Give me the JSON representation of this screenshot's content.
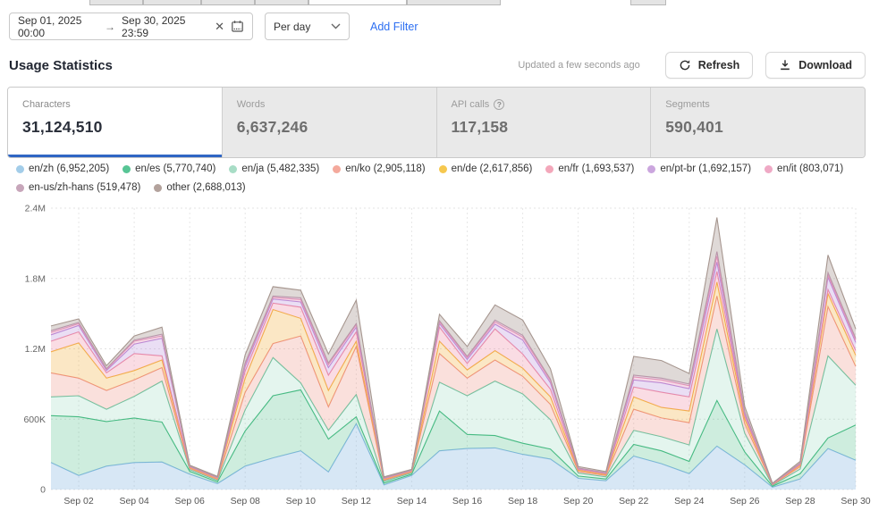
{
  "filters": {
    "date_range": {
      "start": "Sep 01, 2025 00:00",
      "arrow": "→",
      "end": "Sep 30, 2025 23:59"
    },
    "granularity": {
      "value": "Per day"
    },
    "add_filter_label": "Add Filter"
  },
  "header": {
    "title": "Usage Statistics",
    "updated": "Updated a few seconds ago",
    "refresh_label": "Refresh",
    "download_label": "Download"
  },
  "stats": {
    "cards": [
      {
        "label": "Characters",
        "value": "31,124,510",
        "active": true,
        "has_help": false
      },
      {
        "label": "Words",
        "value": "6,637,246",
        "active": false,
        "has_help": false
      },
      {
        "label": "API calls",
        "value": "117,158",
        "active": false,
        "has_help": true
      },
      {
        "label": "Segments",
        "value": "590,401",
        "active": false,
        "has_help": false
      }
    ]
  },
  "chart_data": {
    "type": "area",
    "stacked": true,
    "title": "",
    "xlabel": "",
    "ylabel": "",
    "ylim": [
      0,
      2400000
    ],
    "y_ticks": [
      0,
      600000,
      1200000,
      1800000,
      2400000
    ],
    "y_tick_labels": [
      "0",
      "600K",
      "1.2M",
      "1.8M",
      "2.4M"
    ],
    "x": [
      "Sep 01",
      "Sep 02",
      "Sep 03",
      "Sep 04",
      "Sep 05",
      "Sep 06",
      "Sep 07",
      "Sep 08",
      "Sep 09",
      "Sep 10",
      "Sep 11",
      "Sep 12",
      "Sep 13",
      "Sep 14",
      "Sep 15",
      "Sep 16",
      "Sep 17",
      "Sep 18",
      "Sep 19",
      "Sep 20",
      "Sep 21",
      "Sep 22",
      "Sep 23",
      "Sep 24",
      "Sep 25",
      "Sep 26",
      "Sep 27",
      "Sep 28",
      "Sep 29",
      "Sep 30"
    ],
    "x_tick_labels": [
      "Sep 02",
      "Sep 04",
      "Sep 06",
      "Sep 08",
      "Sep 10",
      "Sep 12",
      "Sep 14",
      "Sep 16",
      "Sep 18",
      "Sep 20",
      "Sep 22",
      "Sep 24",
      "Sep 26",
      "Sep 28",
      "Sep 30"
    ],
    "grid": true,
    "legend_position": "top",
    "series": [
      {
        "name": "en/zh",
        "legend_label": "en/zh (6,952,205)",
        "total": 6952205,
        "dot": "#a3cde9",
        "stroke": "#85b7e2",
        "fill": "rgba(133,183,226,0.33)",
        "values": [
          230000,
          120000,
          200000,
          230000,
          235000,
          130000,
          50000,
          200000,
          270000,
          330000,
          150000,
          560000,
          40000,
          120000,
          330000,
          350000,
          355000,
          300000,
          260000,
          95000,
          75000,
          285000,
          220000,
          135000,
          370000,
          210000,
          20000,
          90000,
          350000,
          250000
        ]
      },
      {
        "name": "en/es",
        "legend_label": "en/es (5,770,740)",
        "total": 5770740,
        "dot": "#57c595",
        "stroke": "#43b97f",
        "fill": "rgba(67,185,127,0.26)",
        "values": [
          400000,
          500000,
          380000,
          380000,
          340000,
          25000,
          15000,
          300000,
          530000,
          520000,
          280000,
          60000,
          15000,
          10000,
          340000,
          120000,
          105000,
          95000,
          85000,
          20000,
          15000,
          100000,
          110000,
          105000,
          390000,
          110000,
          8000,
          45000,
          90000,
          300000
        ]
      },
      {
        "name": "en/ja",
        "legend_label": "en/ja (5,482,335)",
        "total": 5482335,
        "dot": "#a8ddc6",
        "stroke": "#67c6a2",
        "fill": "rgba(103,198,162,0.18)",
        "values": [
          160000,
          180000,
          105000,
          185000,
          350000,
          15000,
          12000,
          180000,
          325000,
          60000,
          75000,
          190000,
          15000,
          12000,
          245000,
          330000,
          465000,
          420000,
          250000,
          25000,
          18000,
          120000,
          120000,
          140000,
          610000,
          160000,
          8000,
          40000,
          700000,
          340000
        ]
      },
      {
        "name": "en/ko",
        "legend_label": "en/ko (2,905,118)",
        "total": 2905118,
        "dot": "#f4a99c",
        "stroke": "#ee9181",
        "fill": "rgba(238,145,129,0.28)",
        "values": [
          205000,
          150000,
          160000,
          140000,
          115000,
          10000,
          10000,
          150000,
          120000,
          400000,
          200000,
          410000,
          10000,
          8000,
          245000,
          150000,
          180000,
          150000,
          130000,
          15000,
          12000,
          180000,
          160000,
          190000,
          280000,
          80000,
          5000,
          20000,
          420000,
          160000
        ]
      },
      {
        "name": "en/de",
        "legend_label": "en/de (2,617,856)",
        "total": 2617856,
        "dot": "#f6c84f",
        "stroke": "#f3b13f",
        "fill": "rgba(243,177,63,0.30)",
        "values": [
          180000,
          300000,
          105000,
          80000,
          65000,
          8000,
          8000,
          120000,
          290000,
          150000,
          140000,
          45000,
          8000,
          5000,
          105000,
          70000,
          80000,
          70000,
          65000,
          10000,
          8000,
          105000,
          90000,
          100000,
          120000,
          40000,
          3000,
          12000,
          110000,
          95000
        ]
      },
      {
        "name": "en/fr",
        "legend_label": "en/fr (1,693,537)",
        "total": 1693537,
        "dot": "#f3a7ba",
        "stroke": "#ee8aa4",
        "fill": "rgba(238,138,164,0.30)",
        "values": [
          90000,
          95000,
          45000,
          145000,
          35000,
          5000,
          4000,
          60000,
          55000,
          95000,
          130000,
          80000,
          5000,
          4000,
          120000,
          55000,
          185000,
          120000,
          65000,
          8000,
          6000,
          85000,
          130000,
          120000,
          90000,
          25000,
          2000,
          8000,
          35000,
          40000
        ]
      },
      {
        "name": "en/pt-br",
        "legend_label": "en/pt-br (1,692,157)",
        "total": 1692157,
        "dot": "#cba6de",
        "stroke": "#b588d8",
        "fill": "rgba(181,136,216,0.28)",
        "values": [
          55000,
          55000,
          20000,
          80000,
          150000,
          4000,
          3000,
          40000,
          35000,
          45000,
          65000,
          40000,
          4000,
          3000,
          30000,
          35000,
          40000,
          120000,
          55000,
          6000,
          5000,
          60000,
          80000,
          70000,
          80000,
          20000,
          2000,
          6000,
          105000,
          70000
        ]
      },
      {
        "name": "en/it",
        "legend_label": "en/it (803,071)",
        "total": 803071,
        "dot": "#efa9c5",
        "stroke": "#e893b8",
        "fill": "rgba(232,147,184,0.33)",
        "values": [
          20000,
          15000,
          10000,
          25000,
          20000,
          2000,
          2000,
          20000,
          15000,
          20000,
          25000,
          20000,
          2000,
          2000,
          15000,
          15000,
          20000,
          25000,
          18000,
          3000,
          2000,
          25000,
          25000,
          25000,
          50000,
          10000,
          1000,
          3000,
          20000,
          20000
        ]
      },
      {
        "name": "en-us/zh-hans",
        "legend_label": "en-us/zh-hans (519,478)",
        "total": 519478,
        "dot": "#c7a6ba",
        "stroke": "#bd95af",
        "fill": "rgba(189,149,175,0.38)",
        "values": [
          15000,
          10000,
          6000,
          10000,
          15000,
          1000,
          1000,
          10000,
          10000,
          15000,
          15000,
          10000,
          1000,
          1000,
          10000,
          10000,
          15000,
          15000,
          12000,
          2000,
          2000,
          15000,
          15000,
          15000,
          40000,
          8000,
          1000,
          2000,
          20000,
          15000
        ]
      },
      {
        "name": "other",
        "legend_label": "other (2,688,013)",
        "total": 2688013,
        "dot": "#b3a29c",
        "stroke": "#a6968f",
        "fill": "rgba(166,150,143,0.36)",
        "values": [
          40000,
          30000,
          25000,
          35000,
          60000,
          8000,
          7000,
          70000,
          80000,
          65000,
          75000,
          200000,
          8000,
          7000,
          55000,
          85000,
          130000,
          130000,
          90000,
          12000,
          10000,
          160000,
          150000,
          90000,
          290000,
          45000,
          4000,
          15000,
          150000,
          80000
        ]
      }
    ]
  }
}
